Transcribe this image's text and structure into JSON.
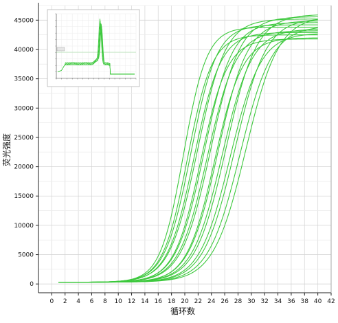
{
  "chart_data": {
    "type": "line",
    "title": "",
    "xlabel": "循环数",
    "ylabel": "荧光强度",
    "xlim": [
      -2,
      42
    ],
    "ylim": [
      -1500,
      47500
    ],
    "grid": true,
    "xticks": [
      0,
      2,
      4,
      6,
      8,
      10,
      12,
      14,
      16,
      18,
      20,
      22,
      24,
      26,
      28,
      30,
      32,
      34,
      36,
      38,
      40,
      42
    ],
    "yticks": [
      0,
      5000,
      10000,
      15000,
      20000,
      25000,
      30000,
      35000,
      40000,
      45000
    ],
    "line_color": "#3cc83c",
    "x": [
      1,
      2,
      3,
      4,
      5,
      6,
      7,
      8,
      9,
      10,
      11,
      12,
      13,
      14,
      15,
      16,
      17,
      18,
      19,
      20,
      21,
      22,
      23,
      24,
      25,
      26,
      27,
      28,
      29,
      30,
      31,
      32,
      33,
      34,
      35,
      36,
      37,
      38,
      39,
      40
    ],
    "curves": [
      {
        "ct": 19.8,
        "plateau": 43800,
        "slope": 1.75
      },
      {
        "ct": 20.4,
        "plateau": 42500,
        "slope": 1.85
      },
      {
        "ct": 20.9,
        "plateau": 44200,
        "slope": 1.95
      },
      {
        "ct": 21.4,
        "plateau": 42900,
        "slope": 2.0
      },
      {
        "ct": 21.9,
        "plateau": 45200,
        "slope": 2.1
      },
      {
        "ct": 22.4,
        "plateau": 41800,
        "slope": 2.0
      },
      {
        "ct": 22.9,
        "plateau": 44600,
        "slope": 2.1
      },
      {
        "ct": 23.4,
        "plateau": 43200,
        "slope": 2.15
      },
      {
        "ct": 23.9,
        "plateau": 45600,
        "slope": 2.2
      },
      {
        "ct": 24.5,
        "plateau": 42000,
        "slope": 2.1
      },
      {
        "ct": 25.0,
        "plateau": 44900,
        "slope": 2.2
      },
      {
        "ct": 25.6,
        "plateau": 43500,
        "slope": 2.25
      },
      {
        "ct": 26.2,
        "plateau": 46000,
        "slope": 2.3
      },
      {
        "ct": 26.8,
        "plateau": 42800,
        "slope": 2.3
      },
      {
        "ct": 27.5,
        "plateau": 45300,
        "slope": 2.35
      },
      {
        "ct": 28.3,
        "plateau": 44000,
        "slope": 2.4
      },
      {
        "ct": 29.2,
        "plateau": 45700,
        "slope": 2.45
      }
    ],
    "inset": {
      "type": "line",
      "description_series": "melt",
      "peak_x_fraction": 0.56,
      "yticks": [
        "",
        "",
        "",
        "",
        "",
        "",
        "",
        "",
        "",
        "",
        ""
      ],
      "xticks": [
        "",
        "",
        "",
        "",
        "",
        "",
        "",
        "",
        "",
        "",
        "",
        "",
        "",
        "",
        "",
        ""
      ]
    }
  }
}
